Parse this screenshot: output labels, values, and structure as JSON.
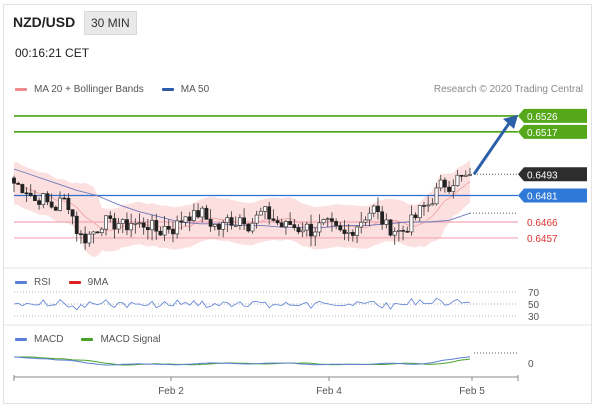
{
  "header": {
    "pair": "NZD/USD",
    "timeframe": "30 MIN",
    "time": "00:16:21 CET",
    "credit": "Research © 2020 Trading Central"
  },
  "legend": {
    "main": [
      {
        "label": "MA 20 + Bollinger Bands",
        "color": "#f08a8a"
      },
      {
        "label": "MA 50",
        "color": "#2b5aa8"
      }
    ],
    "rsi": [
      {
        "label": "RSI",
        "color": "#5b7fd6"
      },
      {
        "label": "9MA",
        "color": "#e02020"
      }
    ],
    "macd": [
      {
        "label": "MACD",
        "color": "#5b7fd6"
      },
      {
        "label": "MACD Signal",
        "color": "#4aa12a"
      }
    ]
  },
  "chart_data": {
    "type": "candlestick",
    "instrument": "NZD/USD",
    "interval": "30 MIN",
    "ylim": [
      0.644,
      0.6535
    ],
    "x_ticks": [
      "Feb 2",
      "Feb 4",
      "Feb 5"
    ],
    "levels": [
      {
        "value": 0.6526,
        "label": "0.6526",
        "kind": "resistance",
        "color": "#4aa30f"
      },
      {
        "value": 0.6517,
        "label": "0.6517",
        "kind": "resistance",
        "color": "#4aa30f"
      },
      {
        "value": 0.6493,
        "label": "0.6493",
        "kind": "last price",
        "color": "#222222"
      },
      {
        "value": 0.6481,
        "label": "0.6481",
        "kind": "pivot",
        "color": "#2f6fd0"
      },
      {
        "value": 0.6466,
        "label": "0.6466",
        "kind": "support",
        "color": "#e03030"
      },
      {
        "value": 0.6457,
        "label": "0.6457",
        "kind": "support",
        "color": "#e03030"
      }
    ],
    "close_path": [
      0.6488,
      0.6486,
      0.6484,
      0.6478,
      0.648,
      0.6476,
      0.6474,
      0.6479,
      0.6476,
      0.6462,
      0.6456,
      0.6459,
      0.6462,
      0.6467,
      0.6464,
      0.6466,
      0.6463,
      0.6466,
      0.6464,
      0.6465,
      0.6463,
      0.646,
      0.6464,
      0.6462,
      0.6466,
      0.6471,
      0.6469,
      0.6472,
      0.6467,
      0.6464,
      0.6462,
      0.6468,
      0.6466,
      0.647,
      0.6464,
      0.6468,
      0.6472,
      0.6469,
      0.6466,
      0.6463,
      0.6465,
      0.6462,
      0.6464,
      0.6461,
      0.6463,
      0.6465,
      0.6463,
      0.646,
      0.6458,
      0.6462,
      0.6466,
      0.647,
      0.6474,
      0.6468,
      0.6463,
      0.6462,
      0.646,
      0.6464,
      0.6468,
      0.6474,
      0.6476,
      0.6482,
      0.6488,
      0.6487,
      0.6491,
      0.649,
      0.6493
    ],
    "ma50_path": [
      0.6496,
      0.6492,
      0.6488,
      0.6484,
      0.6481,
      0.6476,
      0.6472,
      0.6469,
      0.6466,
      0.6465,
      0.6465,
      0.6464,
      0.6464,
      0.6463,
      0.6463,
      0.6463,
      0.6464,
      0.6464,
      0.6465,
      0.6466,
      0.6466,
      0.6467,
      0.6471
    ],
    "forecast_arrow": {
      "from": 0.6493,
      "to": 0.6526
    },
    "rsi": {
      "levels": [
        70,
        50,
        30
      ],
      "ylim": [
        20,
        80
      ]
    },
    "macd": {
      "level_label": "0"
    }
  }
}
